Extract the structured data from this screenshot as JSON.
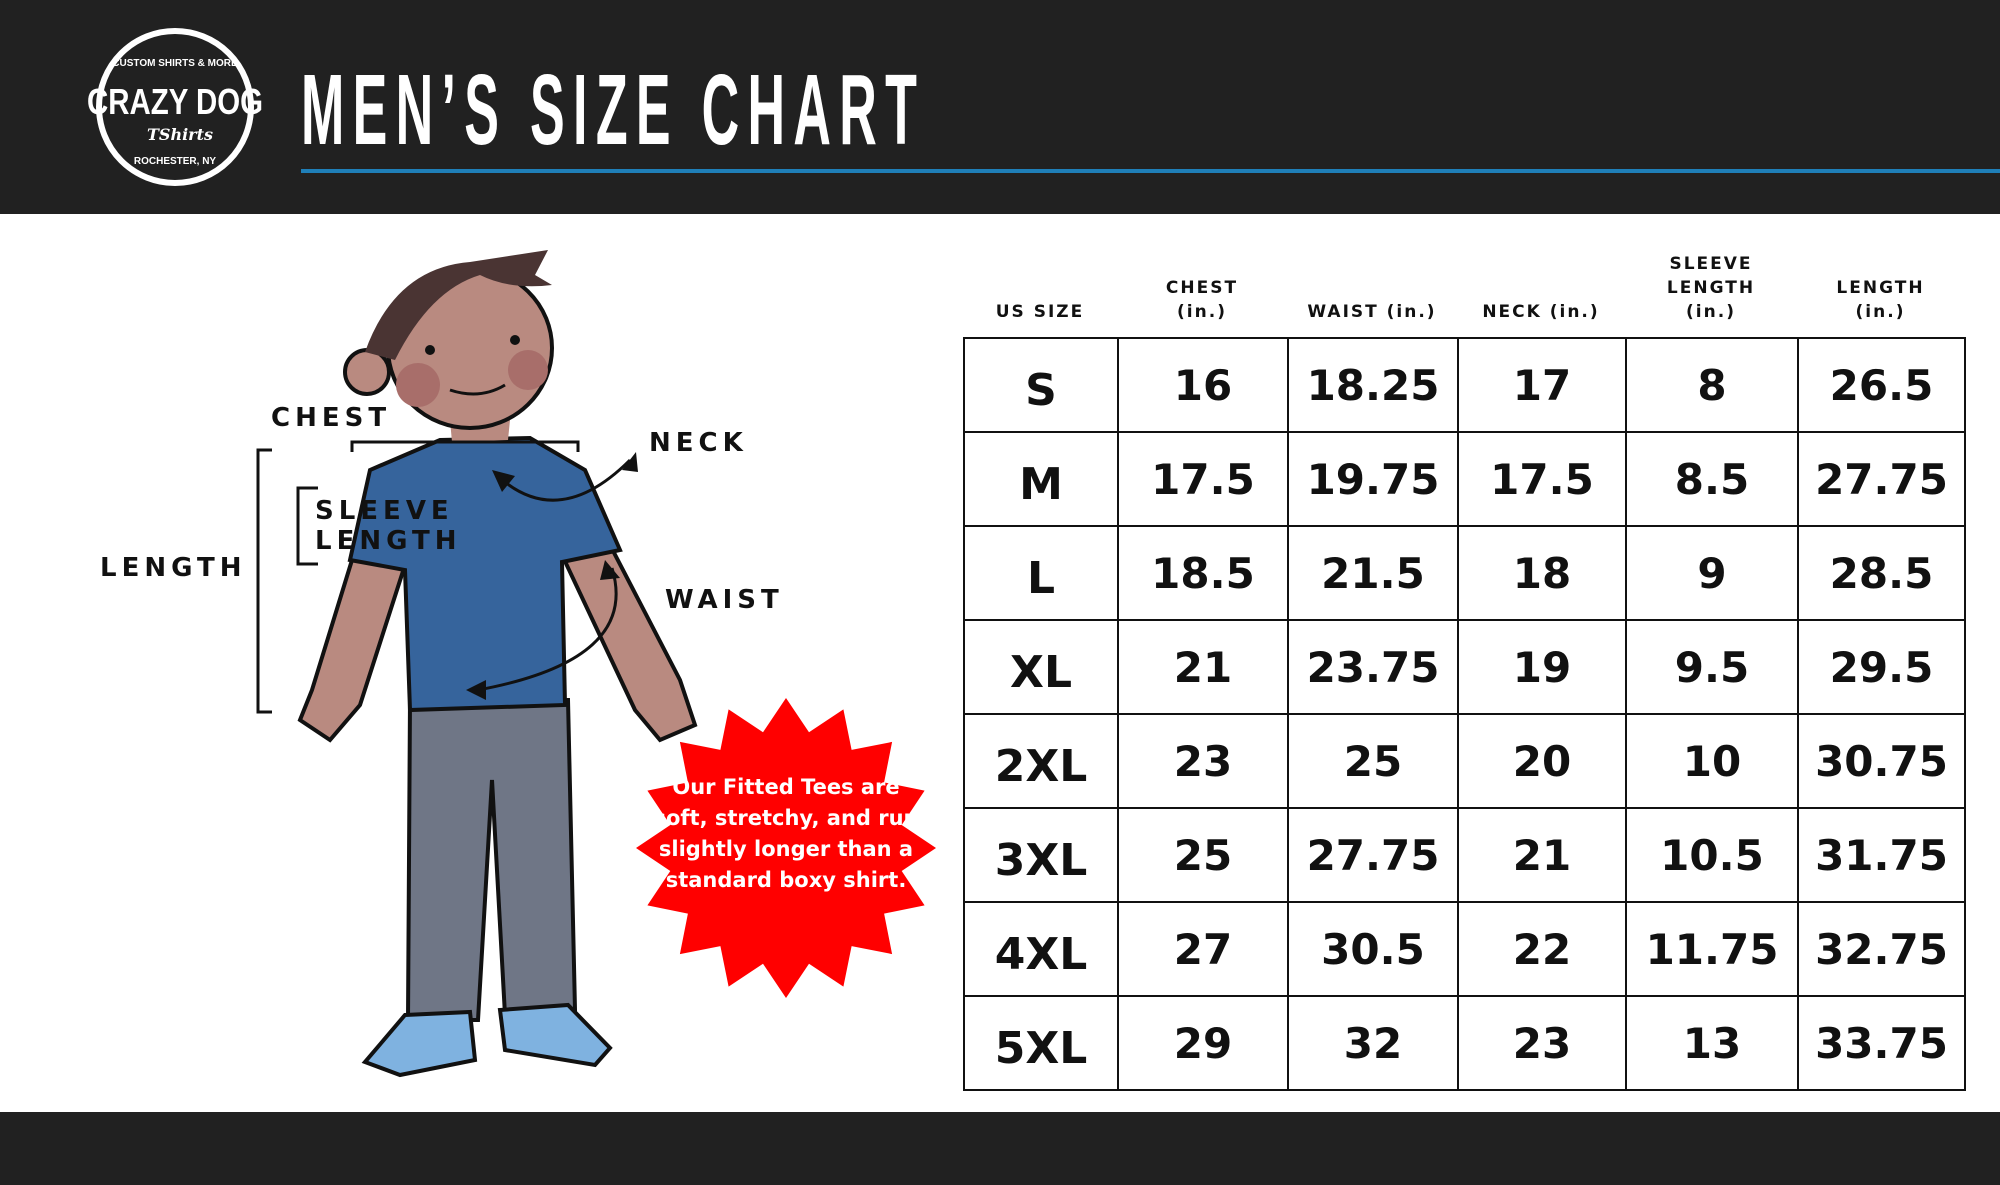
{
  "header": {
    "title": "MEN’S SIZE CHART",
    "logo": {
      "main": "CRAZY DOG",
      "sub": "TShirts",
      "top_arc": "CUSTOM SHIRTS & MORE",
      "bottom_arc": "ROCHESTER, NY"
    },
    "accent_color": "#1f7fb8"
  },
  "figure": {
    "labels": {
      "chest": "CHEST",
      "neck": "NECK",
      "sleeve_line1": "SLEEVE",
      "sleeve_line2": "LENGTH",
      "length": "LENGTH",
      "waist": "WAIST"
    },
    "badge": {
      "text": "Our Fitted Tees are soft, stretchy, and run slightly longer than a standard boxy shirt.",
      "color": "#ff0000"
    }
  },
  "table": {
    "headers": [
      {
        "line1": "US SIZE",
        "line2": ""
      },
      {
        "line1": "CHEST",
        "line2": "(in.)"
      },
      {
        "line1": "WAIST (in.)",
        "line2": ""
      },
      {
        "line1": "NECK (in.)",
        "line2": ""
      },
      {
        "line1": "SLEEVE LENGTH",
        "line2": "(in.)"
      },
      {
        "line1": "LENGTH",
        "line2": "(in.)"
      }
    ],
    "rows": [
      [
        "S",
        "16",
        "18.25",
        "17",
        "8",
        "26.5"
      ],
      [
        "M",
        "17.5",
        "19.75",
        "17.5",
        "8.5",
        "27.75"
      ],
      [
        "L",
        "18.5",
        "21.5",
        "18",
        "9",
        "28.5"
      ],
      [
        "XL",
        "21",
        "23.75",
        "19",
        "9.5",
        "29.5"
      ],
      [
        "2XL",
        "23",
        "25",
        "20",
        "10",
        "30.75"
      ],
      [
        "3XL",
        "25",
        "27.75",
        "21",
        "10.5",
        "31.75"
      ],
      [
        "4XL",
        "27",
        "30.5",
        "22",
        "11.75",
        "32.75"
      ],
      [
        "5XL",
        "29",
        "32",
        "23",
        "13",
        "33.75"
      ]
    ]
  }
}
